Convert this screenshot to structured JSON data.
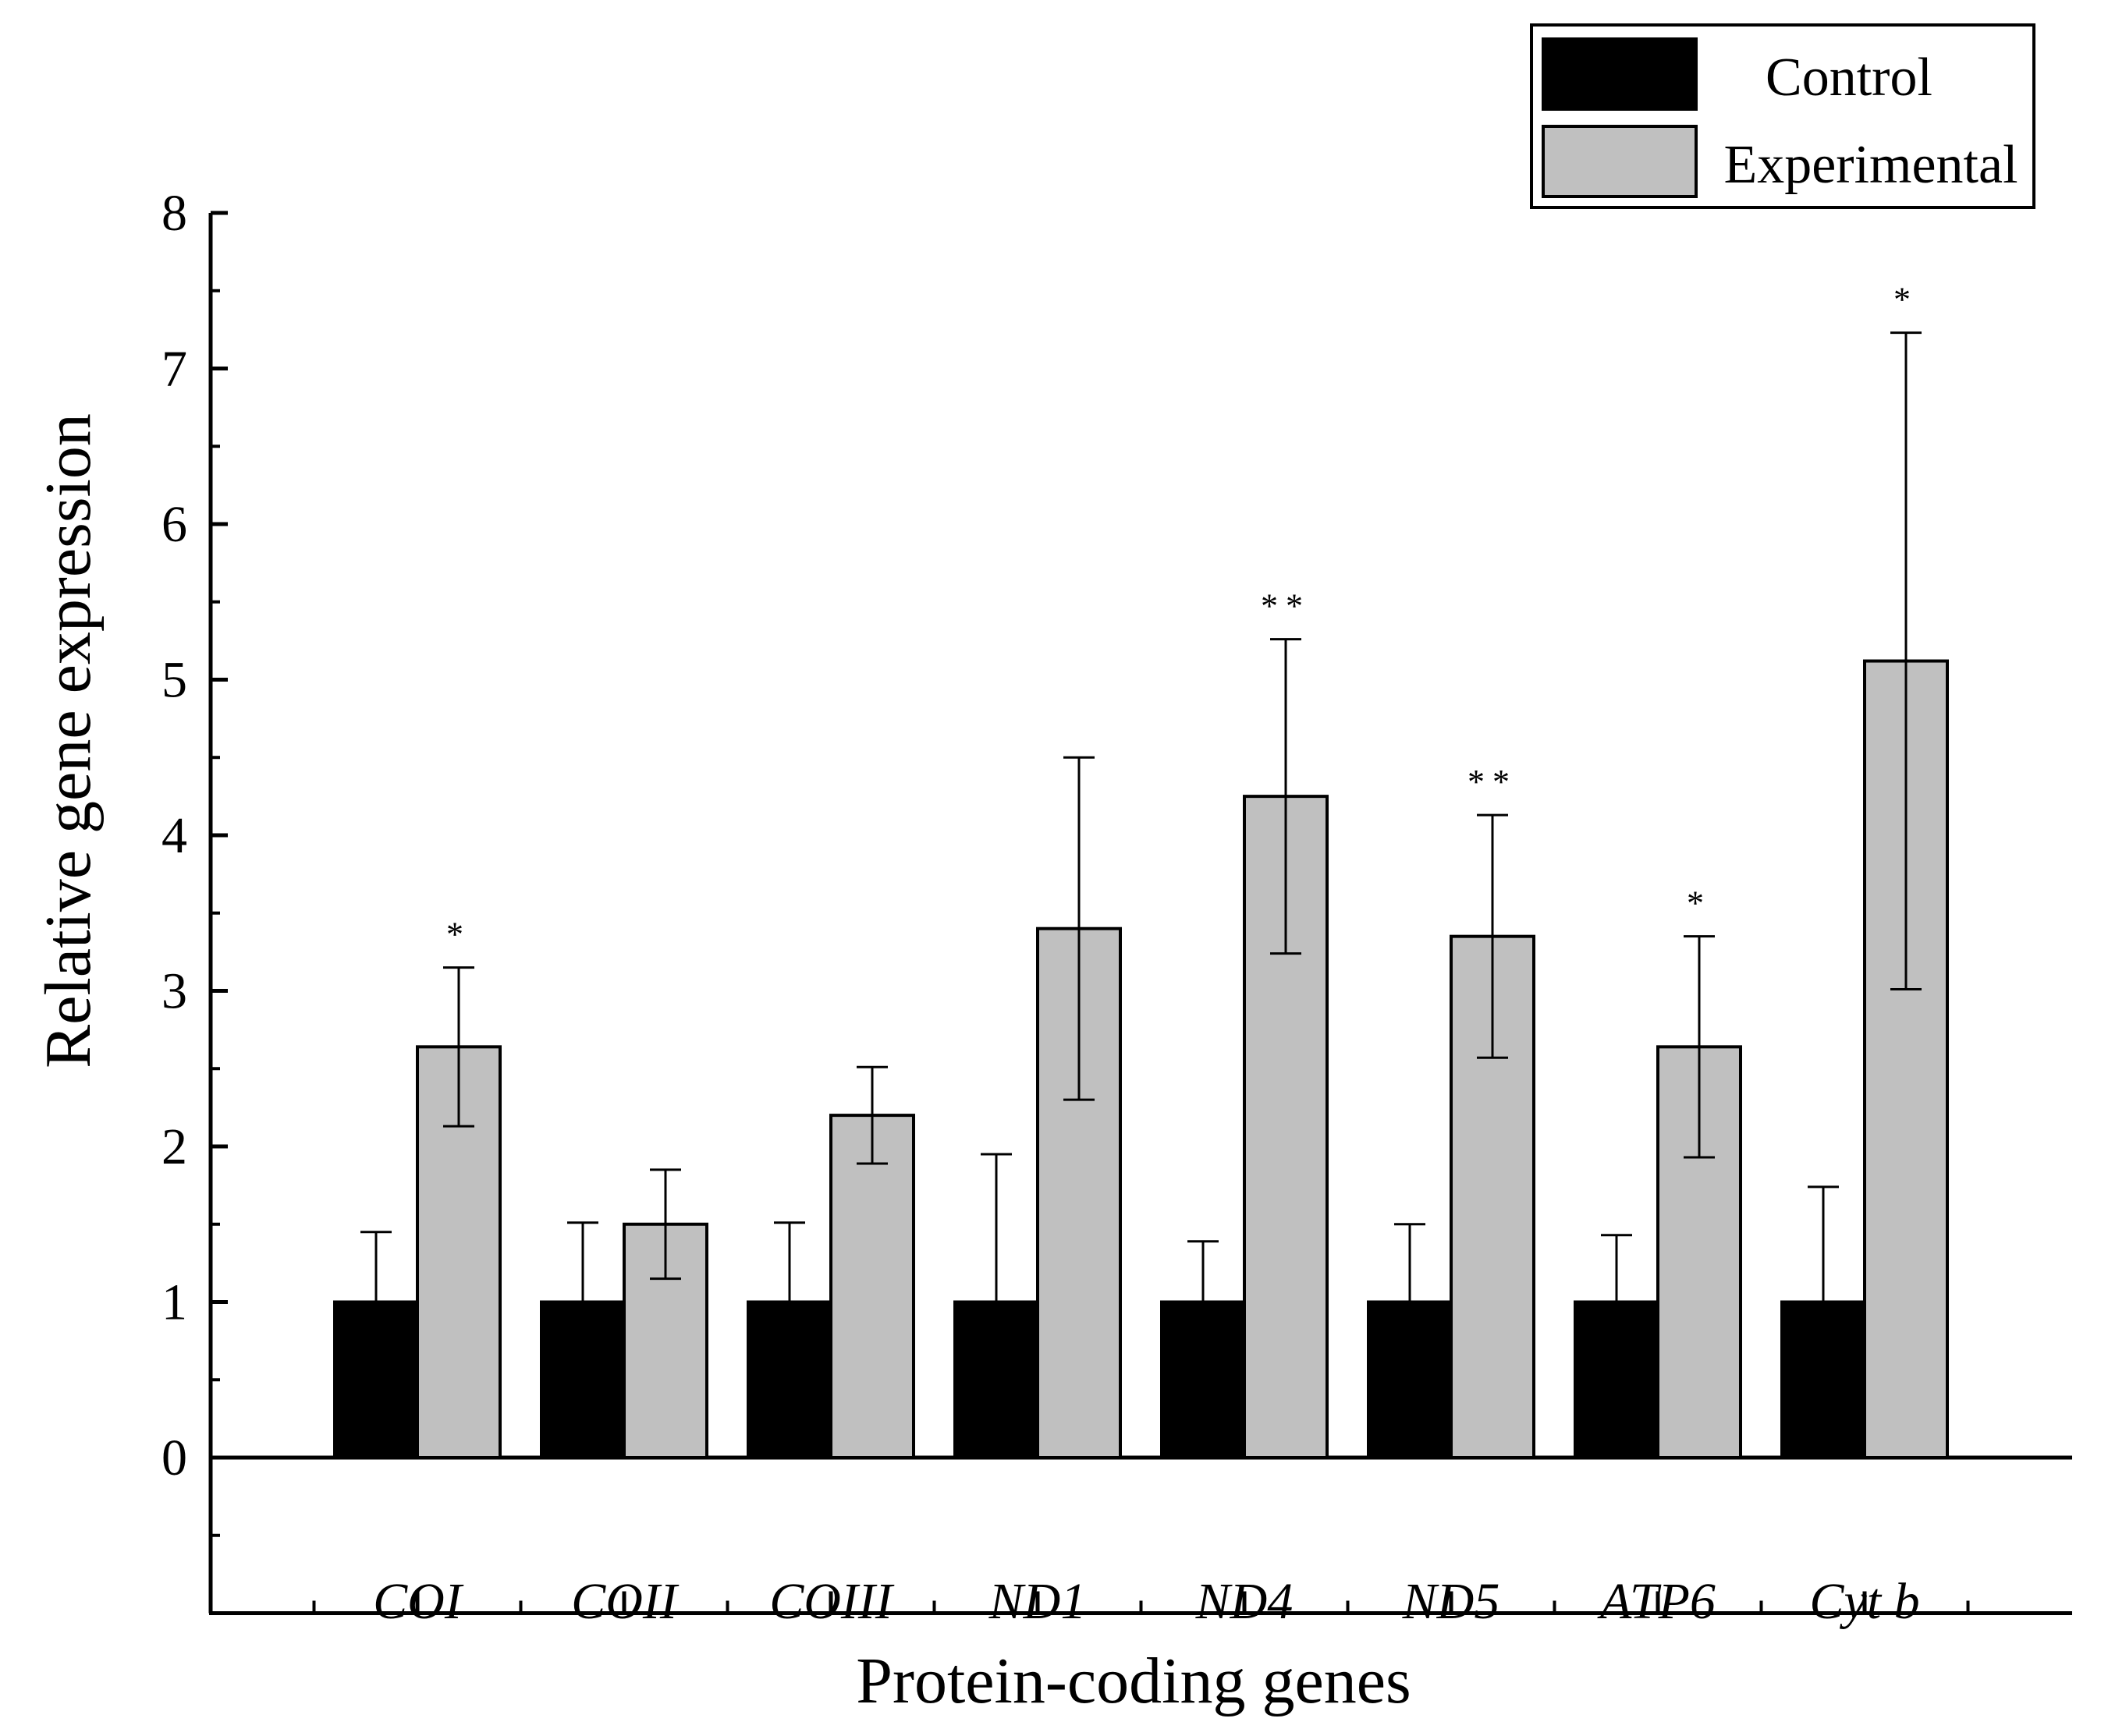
{
  "chart_data": {
    "type": "bar",
    "title": "",
    "xlabel": "Protein-coding genes",
    "ylabel": "Relative gene expression",
    "ylim": [
      -1,
      8
    ],
    "yticks": [
      0,
      1,
      2,
      3,
      4,
      5,
      6,
      7,
      8
    ],
    "categories": [
      "COI",
      "COII",
      "COIII",
      "ND1",
      "ND4",
      "ND5",
      "ATP6",
      "Cyt b"
    ],
    "series": [
      {
        "name": "Control",
        "color": "#000000",
        "values": [
          1,
          1,
          1,
          1,
          1,
          1,
          1,
          1
        ],
        "errors": [
          0.45,
          0.51,
          0.51,
          0.95,
          0.39,
          0.5,
          0.43,
          0.74
        ]
      },
      {
        "name": "Experimental",
        "color": "#c0c0c0",
        "values": [
          2.64,
          1.5,
          2.2,
          3.4,
          4.25,
          3.35,
          2.64,
          5.12
        ],
        "errors": [
          0.51,
          0.35,
          0.31,
          1.1,
          1.01,
          0.78,
          0.71,
          2.11
        ]
      }
    ],
    "significance": [
      "*",
      "",
      "",
      "",
      "**",
      "**",
      "*",
      "*"
    ],
    "legend_position": "top-right",
    "grid": false
  }
}
